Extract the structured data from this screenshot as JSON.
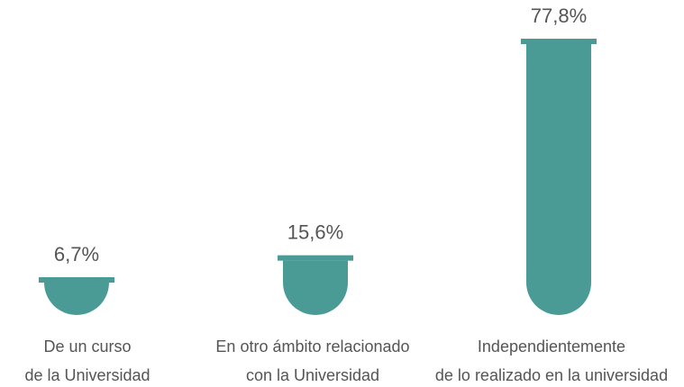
{
  "chart_data": {
    "type": "bar",
    "categories": [
      [
        "De un curso",
        "de la Universidad"
      ],
      [
        "En otro ámbito relacionado",
        "con la Universidad"
      ],
      [
        "Independientemente",
        "de lo realizado en la universidad"
      ]
    ],
    "values": [
      6.7,
      15.6,
      77.8
    ],
    "value_labels": [
      "6,7%",
      "15,6%",
      "77,8%"
    ],
    "color": "#4a9b95"
  }
}
